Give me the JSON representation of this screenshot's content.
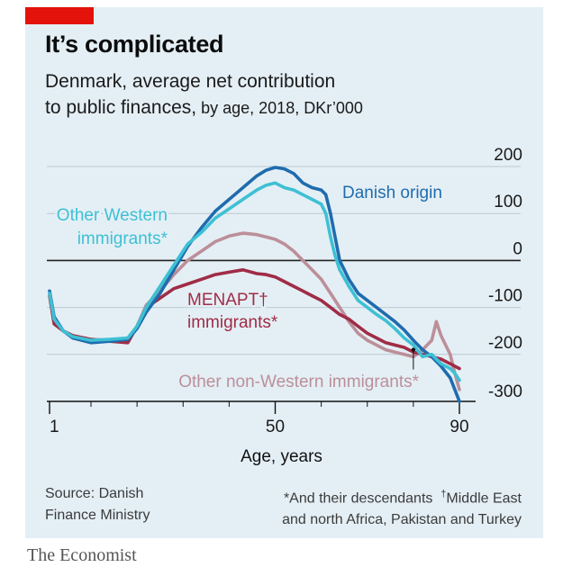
{
  "header": {
    "title": "It’s complicated",
    "subtitle_main": "Denmark, average net contribution",
    "subtitle_line2_a": "to public finances,",
    "subtitle_line2_b": " by age, 2018, DKr’000"
  },
  "footer": {
    "source_line1": "Source: Danish",
    "source_line2": "Finance Ministry",
    "footnote_line1_a": "*And their descendants",
    "footnote_line1_b": "†",
    "footnote_line1_c": "Middle East",
    "footnote_line2": "and north Africa, Pakistan and Turkey",
    "brand": "The Economist"
  },
  "colors": {
    "accent_red": "#e3120b",
    "danish": "#1f6cae",
    "western": "#3ec0d4",
    "menapt": "#a02c46",
    "nonwestern": "#bc8f99",
    "panel": "#e4eff5"
  },
  "chart_data": {
    "type": "line",
    "title": "It’s complicated",
    "xlabel": "Age, years",
    "ylabel": "DKr’000",
    "xlim": [
      1,
      90
    ],
    "ylim": [
      -300,
      200
    ],
    "x_ticks": [
      1,
      50,
      90
    ],
    "y_ticks": [
      200,
      100,
      0,
      -100,
      -200,
      -300
    ],
    "series": [
      {
        "name": "Danish origin",
        "label": "Danish origin",
        "x": [
          1,
          2,
          4,
          6,
          10,
          14,
          18,
          20,
          22,
          25,
          28,
          31,
          34,
          37,
          40,
          43,
          46,
          48,
          50,
          52,
          54,
          56,
          58,
          60,
          61,
          62,
          63,
          64,
          66,
          68,
          70,
          72,
          74,
          76,
          78,
          80,
          82,
          84,
          86,
          88,
          89,
          90
        ],
        "y": [
          -65,
          -120,
          -150,
          -165,
          -175,
          -172,
          -168,
          -145,
          -110,
          -70,
          -20,
          30,
          70,
          105,
          130,
          155,
          180,
          192,
          198,
          195,
          185,
          165,
          155,
          150,
          140,
          100,
          50,
          0,
          -40,
          -70,
          -85,
          -100,
          -115,
          -130,
          -148,
          -170,
          -190,
          -205,
          -225,
          -250,
          -275,
          -300
        ]
      },
      {
        "name": "Other Western immigrants*",
        "label_line1": "Other Western",
        "label_line2": "immigrants*",
        "x": [
          1,
          2,
          4,
          6,
          10,
          14,
          18,
          20,
          22,
          25,
          28,
          31,
          34,
          37,
          40,
          43,
          46,
          48,
          50,
          52,
          54,
          56,
          58,
          60,
          61,
          62,
          63,
          64,
          66,
          68,
          70,
          72,
          74,
          76,
          78,
          80,
          82,
          84,
          86,
          88,
          89,
          90
        ],
        "y": [
          -70,
          -125,
          -150,
          -162,
          -170,
          -168,
          -165,
          -140,
          -100,
          -55,
          -10,
          35,
          60,
          90,
          110,
          130,
          150,
          160,
          165,
          155,
          150,
          140,
          130,
          120,
          100,
          50,
          10,
          -20,
          -55,
          -85,
          -100,
          -115,
          -128,
          -145,
          -165,
          -180,
          -205,
          -200,
          -220,
          -230,
          -240,
          -255
        ]
      },
      {
        "name": "MENAPT† immigrants*",
        "label_line1": "MENAPT†",
        "label_line2": "immigrants*",
        "x": [
          1,
          2,
          4,
          6,
          10,
          14,
          18,
          20,
          22,
          25,
          28,
          31,
          34,
          37,
          40,
          43,
          46,
          48,
          50,
          52,
          54,
          56,
          58,
          60,
          62,
          64,
          66,
          68,
          70,
          72,
          74,
          76,
          78,
          80,
          82,
          84,
          86,
          88,
          89,
          90
        ],
        "y": [
          -75,
          -135,
          -150,
          -160,
          -168,
          -172,
          -175,
          -140,
          -100,
          -80,
          -60,
          -50,
          -40,
          -30,
          -25,
          -20,
          -28,
          -30,
          -35,
          -45,
          -55,
          -65,
          -75,
          -85,
          -100,
          -115,
          -125,
          -140,
          -155,
          -165,
          -175,
          -180,
          -185,
          -195,
          -200,
          -205,
          -210,
          -220,
          -225,
          -230
        ]
      },
      {
        "name": "Other non-Western immigrants*",
        "label": "Other non-Western immigrants*",
        "x": [
          1,
          2,
          4,
          6,
          10,
          14,
          18,
          20,
          22,
          25,
          28,
          31,
          34,
          37,
          40,
          43,
          46,
          48,
          50,
          52,
          54,
          56,
          58,
          60,
          62,
          64,
          66,
          68,
          70,
          72,
          74,
          76,
          78,
          80,
          82,
          84,
          85,
          86,
          87,
          88,
          89,
          90
        ],
        "y": [
          -70,
          -130,
          -150,
          -160,
          -168,
          -170,
          -170,
          -140,
          -95,
          -65,
          -30,
          0,
          20,
          40,
          52,
          58,
          55,
          50,
          45,
          35,
          20,
          0,
          -20,
          -40,
          -70,
          -100,
          -130,
          -155,
          -170,
          -180,
          -190,
          -195,
          -200,
          -205,
          -190,
          -170,
          -130,
          -160,
          -180,
          -200,
          -240,
          -275
        ]
      }
    ],
    "annotations": [
      {
        "target": "Other non-Western immigrants*",
        "at_x": 80,
        "at_y": -190
      }
    ]
  }
}
